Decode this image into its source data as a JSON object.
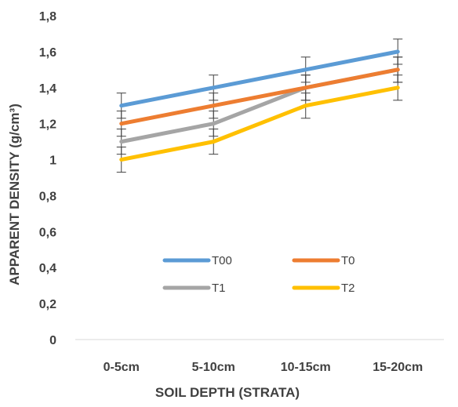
{
  "chart_data": {
    "type": "line",
    "title": "",
    "xlabel": "SOIL DEPTH (STRATA)",
    "ylabel": "APPARENT DENSITY (g/cm³)",
    "categories": [
      "0-5cm",
      "5-10cm",
      "10-15cm",
      "15-20cm"
    ],
    "ylim": [
      0,
      1.8
    ],
    "yticks": [
      "0",
      "0,2",
      "0,4",
      "0,6",
      "0,8",
      "1",
      "1,2",
      "1,4",
      "1,6",
      "1,8"
    ],
    "grid": false,
    "legend_position": "inside, lower center, two columns",
    "error_bar": 0.07,
    "series": [
      {
        "name": "T00",
        "color": "#5B9BD5",
        "values": [
          1.3,
          1.4,
          1.5,
          1.6
        ]
      },
      {
        "name": "T0",
        "color": "#ED7D31",
        "values": [
          1.2,
          1.3,
          1.4,
          1.5
        ]
      },
      {
        "name": "T1",
        "color": "#A5A5A5",
        "values": [
          1.1,
          1.2,
          1.4,
          1.5
        ]
      },
      {
        "name": "T2",
        "color": "#FFC000",
        "values": [
          1.0,
          1.1,
          1.3,
          1.4
        ]
      }
    ]
  }
}
